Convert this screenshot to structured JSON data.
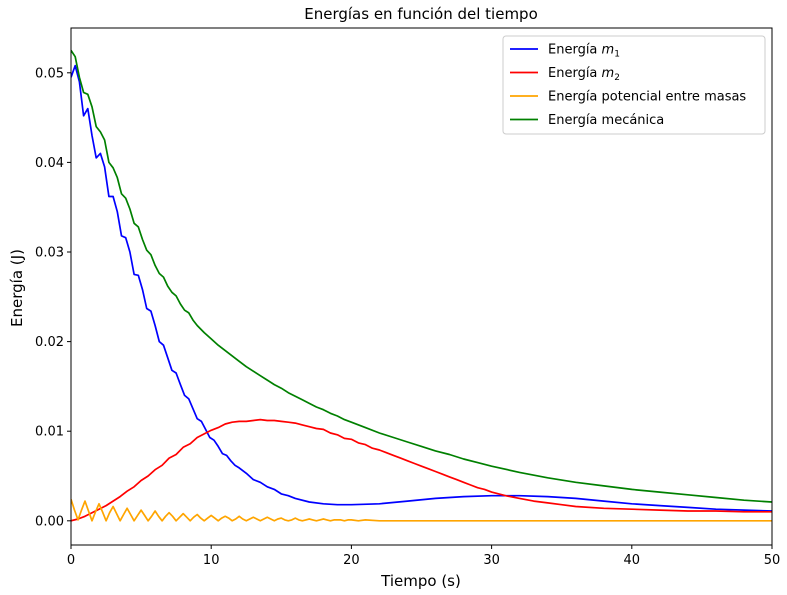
{
  "chart_data": {
    "type": "line",
    "title": "Energías en función del tiempo",
    "xlabel": "Tiempo (s)",
    "ylabel": "Energía (J)",
    "xlim": [
      0,
      50
    ],
    "ylim": [
      -0.0027,
      0.055
    ],
    "x_ticks": [
      0,
      10,
      20,
      30,
      40,
      50
    ],
    "x_tick_labels": [
      "0",
      "10",
      "20",
      "30",
      "40",
      "50"
    ],
    "y_ticks": [
      0.0,
      0.01,
      0.02,
      0.03,
      0.04,
      0.05
    ],
    "y_tick_labels": [
      "0.00",
      "0.01",
      "0.02",
      "0.03",
      "0.04",
      "0.05"
    ],
    "grid": false,
    "legend": {
      "position": "top-right"
    },
    "series": [
      {
        "name": "Energía m1",
        "legend_prefix": "Energía ",
        "legend_math": "m",
        "legend_sub": "1",
        "color": "#0000ff",
        "x": [
          0,
          0.3,
          0.6,
          0.9,
          1.2,
          1.5,
          1.8,
          2.1,
          2.4,
          2.7,
          3.0,
          3.3,
          3.6,
          3.9,
          4.2,
          4.5,
          4.8,
          5.1,
          5.4,
          5.7,
          6.0,
          6.3,
          6.6,
          6.9,
          7.2,
          7.5,
          7.8,
          8.1,
          8.4,
          8.7,
          9.0,
          9.3,
          9.6,
          9.9,
          10.2,
          10.5,
          10.8,
          11.1,
          11.4,
          11.7,
          12.0,
          12.5,
          13.0,
          13.5,
          14.0,
          14.5,
          15.0,
          15.5,
          16.0,
          17.0,
          18.0,
          19.0,
          20.0,
          22.0,
          24.0,
          26.0,
          28.0,
          30.0,
          32.0,
          34.0,
          36.0,
          38.0,
          40.0,
          42.0,
          44.0,
          46.0,
          48.0,
          50.0
        ],
        "y": [
          0.0495,
          0.0508,
          0.049,
          0.0452,
          0.046,
          0.043,
          0.0405,
          0.041,
          0.0395,
          0.0362,
          0.0362,
          0.0345,
          0.0318,
          0.0316,
          0.03,
          0.0275,
          0.0274,
          0.0258,
          0.0237,
          0.0234,
          0.0218,
          0.02,
          0.0196,
          0.0182,
          0.0168,
          0.0165,
          0.0152,
          0.014,
          0.0136,
          0.0125,
          0.0114,
          0.0111,
          0.0102,
          0.0093,
          0.009,
          0.0083,
          0.0075,
          0.0073,
          0.0067,
          0.0062,
          0.0059,
          0.0053,
          0.0046,
          0.0043,
          0.0038,
          0.0035,
          0.003,
          0.0028,
          0.0025,
          0.0021,
          0.0019,
          0.0018,
          0.0018,
          0.0019,
          0.0022,
          0.0025,
          0.0027,
          0.0028,
          0.0028,
          0.0027,
          0.0025,
          0.0022,
          0.0019,
          0.0017,
          0.0015,
          0.0013,
          0.0012,
          0.0011
        ]
      },
      {
        "name": "Energía m2",
        "legend_prefix": "Energía ",
        "legend_math": "m",
        "legend_sub": "2",
        "color": "#ff0000",
        "x": [
          0,
          0.5,
          1.0,
          1.5,
          2.0,
          2.5,
          3.0,
          3.5,
          4.0,
          4.5,
          5.0,
          5.5,
          6.0,
          6.5,
          7.0,
          7.5,
          8.0,
          8.5,
          9.0,
          9.5,
          10.0,
          10.5,
          11.0,
          11.5,
          12.0,
          12.5,
          13.0,
          13.5,
          14.0,
          14.5,
          15.0,
          15.5,
          16.0,
          16.5,
          17.0,
          17.5,
          18.0,
          18.5,
          19.0,
          19.5,
          20.0,
          20.5,
          21.0,
          21.5,
          22.0,
          22.5,
          23.0,
          23.5,
          24.0,
          24.5,
          25.0,
          25.5,
          26.0,
          26.5,
          27.0,
          27.5,
          28.0,
          28.5,
          29.0,
          29.5,
          30.0,
          31.0,
          32.0,
          33.0,
          34.0,
          35.0,
          36.0,
          38.0,
          40.0,
          42.0,
          44.0,
          46.0,
          48.0,
          50.0
        ],
        "y": [
          0.0,
          0.0002,
          0.0005,
          0.0009,
          0.0013,
          0.0017,
          0.0022,
          0.0027,
          0.0033,
          0.0038,
          0.0045,
          0.005,
          0.0057,
          0.0062,
          0.007,
          0.0074,
          0.0082,
          0.0086,
          0.0093,
          0.0097,
          0.0101,
          0.0104,
          0.0108,
          0.011,
          0.0111,
          0.0111,
          0.0112,
          0.0113,
          0.0112,
          0.0112,
          0.0111,
          0.011,
          0.0109,
          0.0107,
          0.0105,
          0.0103,
          0.0102,
          0.0098,
          0.0096,
          0.0092,
          0.0091,
          0.0087,
          0.0085,
          0.0081,
          0.0079,
          0.0076,
          0.0073,
          0.007,
          0.0067,
          0.0064,
          0.0061,
          0.0058,
          0.0055,
          0.0052,
          0.0049,
          0.0046,
          0.0043,
          0.004,
          0.0037,
          0.0035,
          0.0032,
          0.0028,
          0.0025,
          0.0022,
          0.002,
          0.0018,
          0.0016,
          0.0014,
          0.0013,
          0.0012,
          0.0011,
          0.0011,
          0.001,
          0.001
        ]
      },
      {
        "name": "Energía potencial entre masas",
        "legend_prefix": "Energía potencial entre masas",
        "legend_math": "",
        "legend_sub": "",
        "color": "#ffa500",
        "x": [
          0,
          0.25,
          0.5,
          0.75,
          1.0,
          1.25,
          1.5,
          1.75,
          2.0,
          2.25,
          2.5,
          2.75,
          3.0,
          3.25,
          3.5,
          3.75,
          4.0,
          4.25,
          4.5,
          4.75,
          5.0,
          5.25,
          5.5,
          5.75,
          6.0,
          6.25,
          6.5,
          6.75,
          7.0,
          7.25,
          7.5,
          7.75,
          8.0,
          8.25,
          8.5,
          8.75,
          9.0,
          9.25,
          9.5,
          9.75,
          10.0,
          10.25,
          10.5,
          10.75,
          11.0,
          11.25,
          11.5,
          11.75,
          12.0,
          12.25,
          12.5,
          12.75,
          13.0,
          13.25,
          13.5,
          13.75,
          14.0,
          14.25,
          14.5,
          14.75,
          15.0,
          15.25,
          15.5,
          15.75,
          16.0,
          16.25,
          16.5,
          16.75,
          17.0,
          17.25,
          17.5,
          17.75,
          18.0,
          18.25,
          18.5,
          18.75,
          19.0,
          19.25,
          19.5,
          19.75,
          20.0,
          20.5,
          21.0,
          22.0,
          25.0,
          30.0,
          40.0,
          50.0
        ],
        "y": [
          0.0024,
          0.0012,
          0.0001,
          0.0012,
          0.0022,
          0.0011,
          0.0,
          0.001,
          0.0019,
          0.001,
          0.0,
          0.0009,
          0.0016,
          0.0008,
          0.0,
          0.0007,
          0.0014,
          0.0007,
          0.0,
          0.0006,
          0.0012,
          0.0006,
          0.0,
          0.0005,
          0.0011,
          0.0005,
          0.0,
          0.0005,
          0.0009,
          0.0005,
          0.0,
          0.0004,
          0.0008,
          0.0004,
          0.0,
          0.0004,
          0.0007,
          0.0003,
          0.0,
          0.0003,
          0.0006,
          0.0003,
          0.0,
          0.0003,
          0.0005,
          0.0003,
          0.0,
          0.0002,
          0.0005,
          0.0002,
          0.0,
          0.0002,
          0.0004,
          0.0002,
          0.0,
          0.0002,
          0.0004,
          0.0002,
          0.0,
          0.0002,
          0.0003,
          0.0001,
          0.0,
          0.0001,
          0.0003,
          0.0001,
          0.0,
          0.0001,
          0.0002,
          0.0001,
          0.0,
          0.0001,
          0.0002,
          0.0001,
          0.0,
          0.0001,
          0.0001,
          0.0001,
          0.0,
          0.0001,
          0.0001,
          0.0,
          0.0001,
          0.0,
          0.0,
          0.0,
          0.0,
          0.0
        ]
      },
      {
        "name": "Energía mecánica",
        "legend_prefix": "Energía mecánica",
        "legend_math": "",
        "legend_sub": "",
        "color": "#008000",
        "x": [
          0,
          0.3,
          0.6,
          0.9,
          1.2,
          1.5,
          1.8,
          2.1,
          2.4,
          2.7,
          3.0,
          3.3,
          3.6,
          3.9,
          4.2,
          4.5,
          4.8,
          5.1,
          5.4,
          5.7,
          6.0,
          6.3,
          6.6,
          6.9,
          7.2,
          7.5,
          7.8,
          8.1,
          8.4,
          8.7,
          9.0,
          9.5,
          10.0,
          10.5,
          11.0,
          11.5,
          12.0,
          12.5,
          13.0,
          13.5,
          14.0,
          14.5,
          15.0,
          15.5,
          16.0,
          16.5,
          17.0,
          17.5,
          18.0,
          18.5,
          19.0,
          19.5,
          20.0,
          21.0,
          22.0,
          23.0,
          24.0,
          25.0,
          26.0,
          27.0,
          28.0,
          29.0,
          30.0,
          32.0,
          34.0,
          36.0,
          38.0,
          40.0,
          42.0,
          44.0,
          46.0,
          48.0,
          50.0
        ],
        "y": [
          0.0525,
          0.0518,
          0.0495,
          0.0478,
          0.0476,
          0.0462,
          0.044,
          0.0434,
          0.0425,
          0.04,
          0.0394,
          0.0383,
          0.0365,
          0.036,
          0.0348,
          0.0332,
          0.0328,
          0.0314,
          0.0302,
          0.0297,
          0.0285,
          0.0276,
          0.0272,
          0.0262,
          0.0255,
          0.0251,
          0.0242,
          0.0235,
          0.0232,
          0.0224,
          0.0218,
          0.021,
          0.0203,
          0.0196,
          0.019,
          0.0184,
          0.0178,
          0.0172,
          0.0167,
          0.0162,
          0.0157,
          0.0152,
          0.0148,
          0.0143,
          0.0139,
          0.0135,
          0.0131,
          0.0127,
          0.0124,
          0.012,
          0.0117,
          0.0113,
          0.011,
          0.0104,
          0.0098,
          0.0093,
          0.0088,
          0.0083,
          0.0078,
          0.0074,
          0.0069,
          0.0065,
          0.0061,
          0.0054,
          0.0048,
          0.0043,
          0.0039,
          0.0035,
          0.0032,
          0.0029,
          0.0026,
          0.0023,
          0.0021
        ]
      }
    ]
  }
}
